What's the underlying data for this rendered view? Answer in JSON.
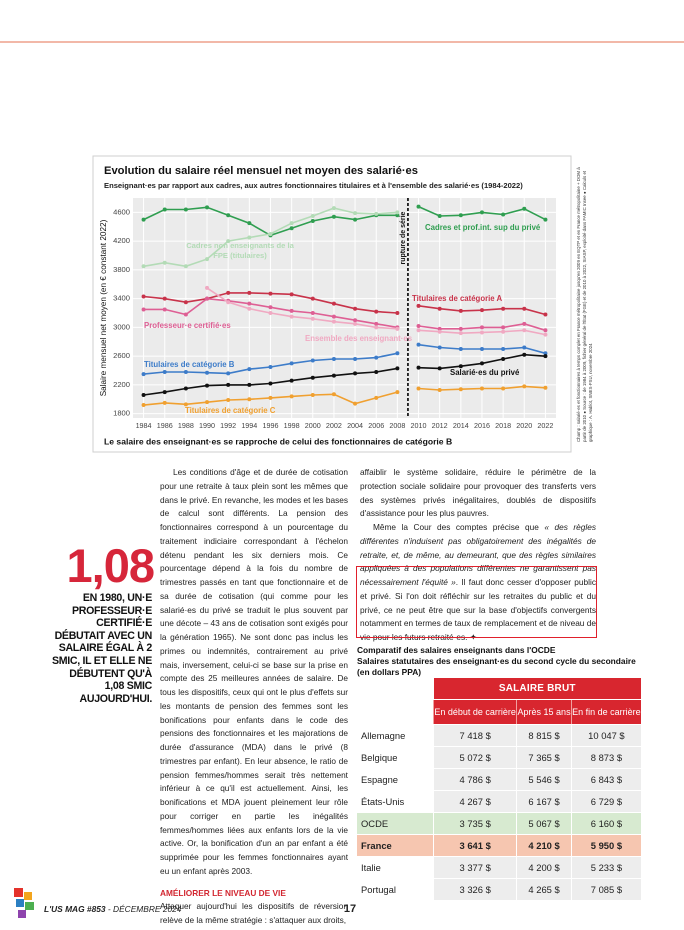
{
  "chart_data": {
    "type": "line",
    "title": "Evolution du salaire réel mensuel net moyen des salarié·es",
    "subtitle": "Enseignant·es par rapport aux cadres, aux autres fonctionnaires titulaires et à l'ensemble des salarié·es (1984-2022)",
    "y_label": "Salaire mensuel net moyen (en € constant 2022)",
    "caption": "Le salaire des enseignant·es se rapproche de celui des fonctionnaires de catégorie B",
    "annotation": "rupture de série",
    "source": "Champ : salarié·es et fonctionnaires à temps complet en France métropolitaine jusqu'en 2009 en EQTP et en France métropolitaine + DOM à partir de 2010 ● Source : de 1984 à 2009, fichier général de l'État (FGE) et de 2010 à 2022, SIASP, exploité dans FAMIC Insee ● Calculs et graphique : A. Hablot, SNES-FSU, novembre 2024",
    "x": [
      1984,
      1986,
      1988,
      1990,
      1992,
      1994,
      1996,
      1998,
      2000,
      2002,
      2004,
      2006,
      2008,
      2009,
      2010,
      2012,
      2014,
      2016,
      2018,
      2020,
      2022
    ],
    "xlim": [
      1983,
      2023
    ],
    "xticks": [
      1984,
      1986,
      1988,
      1990,
      1992,
      1994,
      1996,
      1998,
      2000,
      2002,
      2004,
      2006,
      2008,
      2010,
      2012,
      2014,
      2016,
      2018,
      2020,
      2022
    ],
    "ylim": [
      1740,
      4800
    ],
    "yticks": [
      1800,
      2200,
      2600,
      3000,
      3400,
      3800,
      4200,
      4600
    ],
    "grid": true,
    "series": [
      {
        "name": "Cadres et prof.int. sup du privé",
        "color": "#2f9e50",
        "values": [
          4500,
          4640,
          4640,
          4670,
          4560,
          4450,
          4280,
          4380,
          4480,
          4540,
          4500,
          4560,
          4560,
          null,
          4680,
          4550,
          4560,
          4600,
          4570,
          4650,
          4500
        ]
      },
      {
        "name": "Cadres non enseignants de la FPE (titulaires)",
        "color": "#b3dbb6",
        "values": [
          3850,
          3900,
          3850,
          3950,
          4200,
          4250,
          4300,
          4450,
          4550,
          4660,
          4590,
          4580,
          4600,
          null,
          null,
          null,
          null,
          null,
          null,
          null,
          null
        ]
      },
      {
        "name": "Titulaires de catégorie A",
        "color": "#c8334a",
        "values": [
          3430,
          3400,
          3350,
          3400,
          3480,
          3480,
          3470,
          3460,
          3400,
          3330,
          3260,
          3220,
          3200,
          null,
          3300,
          3260,
          3230,
          3240,
          3260,
          3260,
          3180
        ]
      },
      {
        "name": "Professeur·e certifié·es",
        "color": "#de5f94",
        "values": [
          3250,
          3250,
          3180,
          3400,
          3370,
          3330,
          3280,
          3230,
          3200,
          3150,
          3100,
          3050,
          3000,
          null,
          3020,
          2980,
          2980,
          3000,
          3000,
          3050,
          2960
        ]
      },
      {
        "name": "Ensemble des enseignant·es",
        "color": "#f0a9c2",
        "values": [
          null,
          null,
          null,
          3550,
          3350,
          3260,
          3200,
          3150,
          3120,
          3080,
          3050,
          3000,
          2980,
          null,
          2960,
          2940,
          2920,
          2930,
          2940,
          2960,
          2900
        ]
      },
      {
        "name": "Titulaires de catégorie B",
        "color": "#3d7cc9",
        "values": [
          2350,
          2380,
          2380,
          2370,
          2360,
          2420,
          2450,
          2500,
          2540,
          2560,
          2560,
          2580,
          2640,
          null,
          2760,
          2720,
          2700,
          2700,
          2700,
          2720,
          2640
        ]
      },
      {
        "name": "Salarié·es du privé",
        "color": "#111111",
        "values": [
          2060,
          2100,
          2150,
          2190,
          2200,
          2200,
          2220,
          2260,
          2300,
          2330,
          2360,
          2380,
          2430,
          null,
          2440,
          2430,
          2460,
          2500,
          2560,
          2620,
          2600
        ]
      },
      {
        "name": "Titulaires de catégorie C",
        "color": "#f0a030",
        "values": [
          1920,
          1950,
          1930,
          1960,
          1990,
          2000,
          2020,
          2040,
          2060,
          2070,
          1940,
          2020,
          2100,
          null,
          2150,
          2130,
          2140,
          2150,
          2150,
          2180,
          2160
        ]
      }
    ]
  },
  "pull_quote": {
    "number": "1,08",
    "text": "EN 1980, UN·E PROFESSEUR·E CERTIFIÉ·E DÉBUTAIT AVEC UN SALAIRE ÉGAL À 2 SMIC, IL ET ELLE NE DÉBUTENT QU'À 1,08 SMIC AUJOURD'HUI."
  },
  "article": {
    "column1": "Les conditions d'âge et de durée de cotisation pour une retraite à taux plein sont les mêmes que dans le privé. En revanche, les modes et les bases de calcul sont différents. La pension des fonctionnaires correspond à un pourcentage du traitement indiciaire correspondant à l'échelon détenu pendant les six derniers mois. Ce pourcentage dépend à la fois du nombre de trimestres passés en tant que fonctionnaire et de sa durée de cotisation (qui comme pour les salarié·es du privé se traduit le plus souvent par une décote – 43 ans de cotisation sont exigés pour la génération 1965). Ne sont donc pas inclus les primes ou indemnités, contrairement au privé mais, inversement, celui-ci se base sur la prise en compte des 25 meilleures années de salaire. De tous les dispositifs, ceux qui ont le plus d'effets sur les montants de pension des femmes sont les bonifications pour enfants dans le code des pensions des fonctionnaires et les majorations de durée d'assurance (MDA) dans le privé (8 trimestres par enfant). En leur absence, le ratio de pension femmes/hommes serait très nettement inférieur à ce qu'il est actuellement. Ainsi, les bonifications et MDA jouent pleinement leur rôle pour corriger en partie les inégalités femmes/hommes liées aux enfants lors de la vie active. Or, la bonification d'un an par enfant a été supprimée pour les femmes fonctionnaires ayant eu un enfant après 2003.",
    "subheading": "AMÉLIORER LE NIVEAU DE VIE",
    "column1_end": "Attaquer aujourd'hui les dispositifs de réversion relève de la même stratégie : s'attaquer aux droits,",
    "column2_p1": "affaiblir le système solidaire, réduire le périmètre de la protection sociale solidaire pour provoquer des transferts vers des systèmes privés inégalitaires, doublés de dispositifs d'assistance pour les plus pauvres.",
    "column2_p2": [
      "Même la Cour des comptes précise que ",
      "« des règles différentes n'induisent pas obligatoirement des inégalités de retraite, et, de même, au demeurant, que des règles similaires appliquées à des populations différentes ne garantissent pas nécessairement l'équité »",
      ". Il faut donc cesser d'opposer public et privé. Si l'on doit réfléchir sur les retraites du public et du privé, ce ne peut être que sur la base d'objectifs convergents notamment en termes de taux de remplacement et de niveau de vie pour les futurs retraité·es. ✦"
    ]
  },
  "table": {
    "title": "Comparatif des salaires enseignants dans l'OCDE",
    "subtitle": "Salaires statutaires des enseignant·es du second cycle du secondaire (en dollars PPA)",
    "group_header": "SALAIRE BRUT",
    "columns": [
      "En début de carrière",
      "Après 15 ans",
      "En fin de carrière"
    ],
    "rows": [
      [
        "Allemagne",
        "7 418 $",
        "8 815 $",
        "10 047 $"
      ],
      [
        "Belgique",
        "5 072 $",
        "7 365 $",
        "8 873 $"
      ],
      [
        "Espagne",
        "4 786 $",
        "5 546 $",
        "6 843 $"
      ],
      [
        "États-Unis",
        "4 267 $",
        "6 167 $",
        "6 729 $"
      ],
      [
        "OCDE",
        "3 735 $",
        "5 067 $",
        "6 160 $"
      ],
      [
        "France",
        "3 641 $",
        "4 210 $",
        "5 950 $"
      ],
      [
        "Italie",
        "3 377 $",
        "4 200 $",
        "5 233 $"
      ],
      [
        "Portugal",
        "3 326 $",
        "4 265 $",
        "7 085 $"
      ]
    ]
  },
  "footer": {
    "issue": "L'US MAG #853",
    "date": "- DÉCEMBRE 2024",
    "page": "17"
  }
}
